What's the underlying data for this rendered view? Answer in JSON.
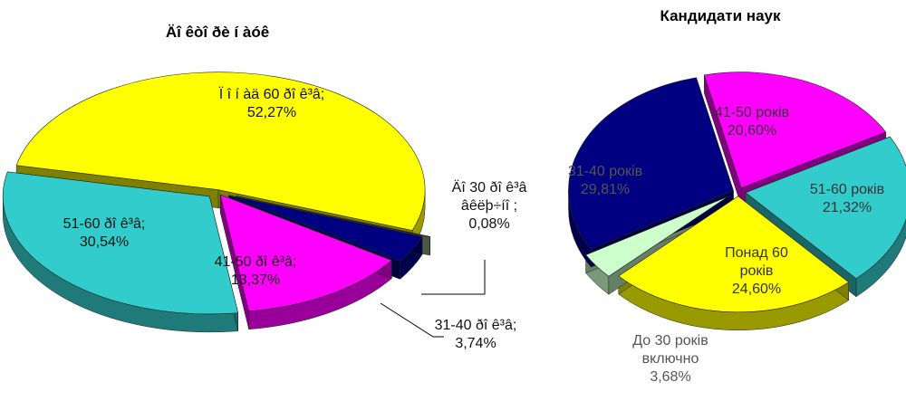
{
  "chart_data": [
    {
      "type": "pie",
      "title": "Äî êòî ðè í àóê",
      "categories": [
        "Ï î í àä 60 ðî ê³â;",
        "Äî 30 ðî ê³â âêëþ÷íî ;",
        "31-40 ðî ê³â;",
        "41-50 ðî ê³â;",
        "51-60 ðî ê³â;"
      ],
      "values": [
        52.27,
        0.08,
        3.74,
        13.37,
        30.54
      ],
      "value_labels": [
        "52,27%",
        "0,08%",
        "3,74%",
        "13,37%",
        "30,54%"
      ],
      "colors": [
        "#ffff00",
        "#99b088",
        "#000080",
        "#ff00ff",
        "#33cccc"
      ]
    },
    {
      "type": "pie",
      "title": "Кандидати наук",
      "categories": [
        "41-50 років",
        "51-60 років",
        "Понад 60 років",
        "До 30 років включно",
        "31-40 років"
      ],
      "values": [
        20.6,
        21.32,
        24.6,
        3.68,
        29.81
      ],
      "value_labels": [
        "20,60%",
        "21,32%",
        "24,60%",
        "3,68%",
        "29,81%"
      ],
      "colors": [
        "#ff00ff",
        "#33cccc",
        "#ffff00",
        "#ccffcc",
        "#000080"
      ]
    }
  ]
}
